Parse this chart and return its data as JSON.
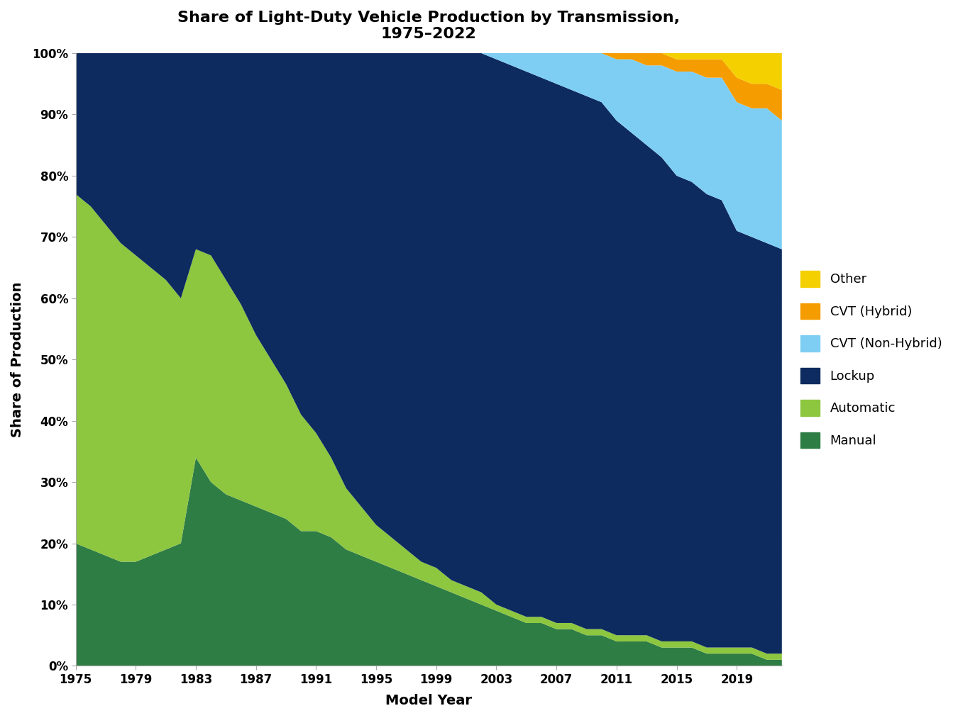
{
  "title": "Share of Light-Duty Vehicle Production by Transmission,\n1975–2022",
  "xlabel": "Model Year",
  "ylabel": "Share of Production",
  "years": [
    1975,
    1976,
    1977,
    1978,
    1979,
    1980,
    1981,
    1982,
    1983,
    1984,
    1985,
    1986,
    1987,
    1988,
    1989,
    1990,
    1991,
    1992,
    1993,
    1994,
    1995,
    1996,
    1997,
    1998,
    1999,
    2000,
    2001,
    2002,
    2003,
    2004,
    2005,
    2006,
    2007,
    2008,
    2009,
    2010,
    2011,
    2012,
    2013,
    2014,
    2015,
    2016,
    2017,
    2018,
    2019,
    2020,
    2021,
    2022
  ],
  "manual": [
    0.2,
    0.19,
    0.18,
    0.17,
    0.17,
    0.18,
    0.19,
    0.2,
    0.34,
    0.3,
    0.28,
    0.27,
    0.26,
    0.25,
    0.24,
    0.22,
    0.22,
    0.21,
    0.19,
    0.18,
    0.17,
    0.16,
    0.15,
    0.14,
    0.13,
    0.12,
    0.11,
    0.1,
    0.09,
    0.08,
    0.07,
    0.07,
    0.06,
    0.06,
    0.05,
    0.05,
    0.04,
    0.04,
    0.04,
    0.03,
    0.03,
    0.03,
    0.02,
    0.02,
    0.02,
    0.02,
    0.01,
    0.01
  ],
  "automatic": [
    0.57,
    0.56,
    0.54,
    0.52,
    0.5,
    0.47,
    0.44,
    0.4,
    0.34,
    0.37,
    0.35,
    0.32,
    0.28,
    0.25,
    0.22,
    0.19,
    0.16,
    0.13,
    0.1,
    0.08,
    0.06,
    0.05,
    0.04,
    0.03,
    0.03,
    0.02,
    0.02,
    0.02,
    0.01,
    0.01,
    0.01,
    0.01,
    0.01,
    0.01,
    0.01,
    0.01,
    0.01,
    0.01,
    0.01,
    0.01,
    0.01,
    0.01,
    0.01,
    0.01,
    0.01,
    0.01,
    0.01,
    0.01
  ],
  "lockup": [
    0.23,
    0.25,
    0.28,
    0.31,
    0.33,
    0.35,
    0.37,
    0.4,
    0.32,
    0.33,
    0.37,
    0.41,
    0.46,
    0.5,
    0.54,
    0.59,
    0.62,
    0.66,
    0.71,
    0.74,
    0.77,
    0.79,
    0.81,
    0.83,
    0.84,
    0.86,
    0.87,
    0.88,
    0.89,
    0.89,
    0.89,
    0.88,
    0.88,
    0.87,
    0.87,
    0.86,
    0.84,
    0.82,
    0.8,
    0.79,
    0.76,
    0.75,
    0.74,
    0.73,
    0.68,
    0.67,
    0.67,
    0.66
  ],
  "cvt_nonhybrid": [
    0.0,
    0.0,
    0.0,
    0.0,
    0.0,
    0.0,
    0.0,
    0.0,
    0.0,
    0.0,
    0.0,
    0.0,
    0.0,
    0.0,
    0.0,
    0.0,
    0.0,
    0.0,
    0.0,
    0.0,
    0.0,
    0.0,
    0.0,
    0.0,
    0.0,
    0.0,
    0.0,
    0.0,
    0.01,
    0.02,
    0.03,
    0.04,
    0.05,
    0.06,
    0.07,
    0.08,
    0.1,
    0.12,
    0.13,
    0.15,
    0.17,
    0.18,
    0.19,
    0.2,
    0.21,
    0.21,
    0.22,
    0.21
  ],
  "cvt_hybrid": [
    0.0,
    0.0,
    0.0,
    0.0,
    0.0,
    0.0,
    0.0,
    0.0,
    0.0,
    0.0,
    0.0,
    0.0,
    0.0,
    0.0,
    0.0,
    0.0,
    0.0,
    0.0,
    0.0,
    0.0,
    0.0,
    0.0,
    0.0,
    0.0,
    0.0,
    0.0,
    0.0,
    0.0,
    0.0,
    0.0,
    0.0,
    0.0,
    0.0,
    0.0,
    0.0,
    0.0,
    0.01,
    0.01,
    0.02,
    0.02,
    0.02,
    0.02,
    0.03,
    0.03,
    0.04,
    0.04,
    0.04,
    0.05
  ],
  "other": [
    0.0,
    0.0,
    0.0,
    0.0,
    0.0,
    0.0,
    0.0,
    0.0,
    0.0,
    0.0,
    0.0,
    0.0,
    0.0,
    0.0,
    0.0,
    0.0,
    0.0,
    0.0,
    0.0,
    0.0,
    0.0,
    0.0,
    0.0,
    0.0,
    0.0,
    0.0,
    0.0,
    0.0,
    0.0,
    0.0,
    0.0,
    0.0,
    0.0,
    0.0,
    0.0,
    0.0,
    0.0,
    0.0,
    0.0,
    0.0,
    0.01,
    0.01,
    0.01,
    0.01,
    0.04,
    0.05,
    0.05,
    0.06
  ],
  "colors": {
    "manual": "#2e7d45",
    "automatic": "#8dc63f",
    "lockup": "#0d2b5e",
    "cvt_nonhybrid": "#7ecef4",
    "cvt_hybrid": "#f59c00",
    "other": "#f5d000"
  },
  "legend_labels": [
    "Manual",
    "Automatic",
    "Lockup",
    "CVT (Non-Hybrid)",
    "CVT (Hybrid)",
    "Other"
  ],
  "xticks": [
    1975,
    1979,
    1983,
    1987,
    1991,
    1995,
    1999,
    2003,
    2007,
    2011,
    2015,
    2019
  ],
  "yticks": [
    0.0,
    0.1,
    0.2,
    0.3,
    0.4,
    0.5,
    0.6,
    0.7,
    0.8,
    0.9,
    1.0
  ],
  "ytick_labels": [
    "0%",
    "10%",
    "20%",
    "30%",
    "40%",
    "50%",
    "60%",
    "70%",
    "80%",
    "90%",
    "100%"
  ]
}
